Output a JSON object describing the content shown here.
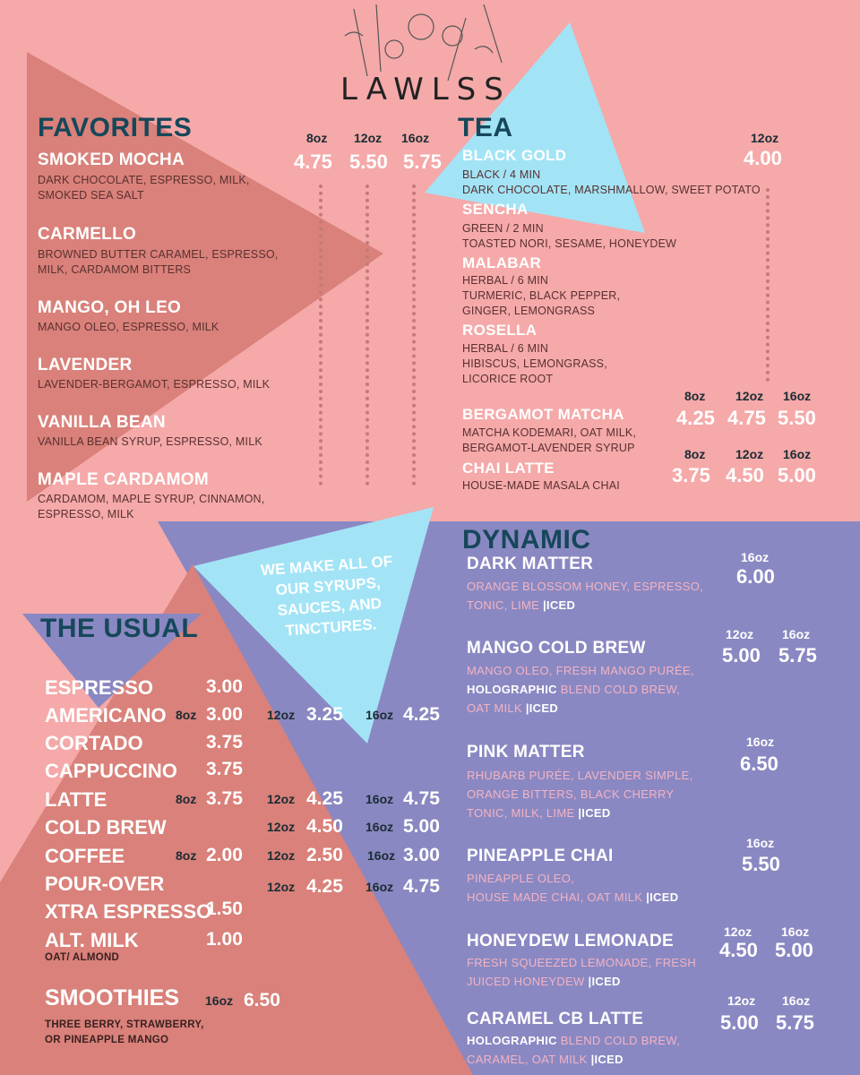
{
  "brand": "LAWLSS",
  "favorites": {
    "title": "FAVORITES",
    "sizes": [
      "8oz",
      "12oz",
      "16oz"
    ],
    "prices": [
      "4.75",
      "5.50",
      "5.75"
    ],
    "items": [
      {
        "name": "SMOKED MOCHA",
        "desc1": "DARK CHOCOLATE, ESPRESSO, MILK,",
        "desc2": "SMOKED SEA SALT"
      },
      {
        "name": "CARMELLO",
        "desc1": "BROWNED BUTTER CARAMEL, ESPRESSO,",
        "desc2": "MILK, CARDAMOM BITTERS"
      },
      {
        "name": "MANGO, OH LEO",
        "desc1": "MANGO OLEO, ESPRESSO, MILK",
        "desc2": ""
      },
      {
        "name": "LAVENDER",
        "desc1": "LAVENDER-BERGAMOT, ESPRESSO, MILK",
        "desc2": ""
      },
      {
        "name": "VANILLA BEAN",
        "desc1": "VANILLA BEAN SYRUP, ESPRESSO, MILK",
        "desc2": ""
      },
      {
        "name": "MAPLE CARDAMOM",
        "desc1": "CARDAMOM, MAPLE SYRUP, CINNAMON,",
        "desc2": "ESPRESSO, MILK"
      }
    ]
  },
  "tea": {
    "title": "TEA",
    "size": "12oz",
    "price": "4.00",
    "items": [
      {
        "name": "BLACK GOLD",
        "l1": "BLACK / 4 MIN",
        "l2": "DARK CHOCOLATE, MARSHMALLOW, SWEET POTATO",
        "l3": ""
      },
      {
        "name": "SENCHA",
        "l1": "GREEN / 2 MIN",
        "l2": "TOASTED NORI, SESAME, HONEYDEW",
        "l3": ""
      },
      {
        "name": "MALABAR",
        "l1": "HERBAL / 6 MIN",
        "l2": "TURMERIC, BLACK PEPPER,",
        "l3": "GINGER, LEMONGRASS"
      },
      {
        "name": "ROSELLA",
        "l1": "HERBAL / 6 MIN",
        "l2": "HIBISCUS, LEMONGRASS,",
        "l3": "LICORICE ROOT"
      }
    ],
    "matcha": {
      "name": "BERGAMOT MATCHA",
      "l1": "MATCHA KODEMARI, OAT MILK,",
      "l2": "BERGAMOT-LAVENDER SYRUP",
      "sizes": [
        "8oz",
        "12oz",
        "16oz"
      ],
      "prices": [
        "4.25",
        "4.75",
        "5.50"
      ]
    },
    "chai": {
      "name": "CHAI LATTE",
      "l1": "HOUSE-MADE MASALA CHAI",
      "sizes": [
        "8oz",
        "12oz",
        "16oz"
      ],
      "prices": [
        "3.75",
        "4.50",
        "5.00"
      ]
    }
  },
  "banner": {
    "l1": "WE MAKE ALL OF",
    "l2": "OUR SYRUPS,",
    "l3": "SAUCES, AND",
    "l4": "TINCTURES."
  },
  "usual": {
    "title": "THE USUAL",
    "espresso": {
      "name": "ESPRESSO",
      "p": "3.00"
    },
    "americano": {
      "name": "AMERICANO",
      "s1": "8oz",
      "p1": "3.00",
      "s2": "12oz",
      "p2": "3.25",
      "s3": "16oz",
      "p3": "4.25"
    },
    "cortado": {
      "name": "CORTADO",
      "p": "3.75"
    },
    "cappuccino": {
      "name": "CAPPUCCINO",
      "p": "3.75"
    },
    "latte": {
      "name": "LATTE",
      "s1": "8oz",
      "p1": "3.75",
      "s2": "12oz",
      "p2": "4.25",
      "s3": "16oz",
      "p3": "4.75"
    },
    "coldbrew": {
      "name": "COLD BREW",
      "s2": "12oz",
      "p2": "4.50",
      "s3": "16oz",
      "p3": "5.00"
    },
    "coffee": {
      "name": "COFFEE",
      "s1": "8oz",
      "p1": "2.00",
      "s2": "12oz",
      "p2": "2.50",
      "s3": "16oz",
      "p3": "3.00"
    },
    "pourover": {
      "name": "POUR-OVER",
      "s2": "12oz",
      "p2": "4.25",
      "s3": "16oz",
      "p3": "4.75"
    },
    "xtra": {
      "name": "XTRA ESPRESSO",
      "p": "1.50"
    },
    "altmilk": {
      "name": "ALT. MILK",
      "p": "1.00",
      "sub": "OAT/ ALMOND"
    },
    "smoothies": {
      "name": "SMOOTHIES",
      "s": "16oz",
      "p": "6.50",
      "sub1": "THREE BERRY, STRAWBERRY,",
      "sub2": "OR PINEAPPLE MANGO"
    }
  },
  "dynamic": {
    "title": "DYNAMIC",
    "iced": "|ICED",
    "holo": "HOLOGRAPHIC",
    "items": [
      {
        "name": "DARK MATTER",
        "sizes": [
          "16oz"
        ],
        "prices": [
          "6.00"
        ],
        "l1": "ORANGE BLOSSOM HONEY, ESPRESSO,",
        "l2": "TONIC, LIME"
      },
      {
        "name": "MANGO COLD BREW",
        "sizes": [
          "12oz",
          "16oz"
        ],
        "prices": [
          "5.00",
          "5.75"
        ],
        "l1": "MANGO OLEO, FRESH MANGO PURÉE,",
        "l2": " BLEND COLD BREW,",
        "l3": "OAT MILK"
      },
      {
        "name": "PINK MATTER",
        "sizes": [
          "16oz"
        ],
        "prices": [
          "6.50"
        ],
        "l1": "RHUBARB PURÉE, LAVENDER SIMPLE,",
        "l2": "ORANGE BITTERS, BLACK CHERRY",
        "l3": "TONIC, MILK, LIME"
      },
      {
        "name": "PINEAPPLE CHAI",
        "sizes": [
          "16oz"
        ],
        "prices": [
          "5.50"
        ],
        "l1": "PINEAPPLE OLEO,",
        "l2": "HOUSE MADE CHAI, OAT MILK"
      },
      {
        "name": "HONEYDEW LEMONADE",
        "sizes": [
          "12oz",
          "16oz"
        ],
        "prices": [
          "4.50",
          "5.00"
        ],
        "l1": "FRESH SQUEEZED LEMONADE, FRESH",
        "l2": "JUICED HONEYDEW"
      },
      {
        "name": "CARAMEL CB LATTE",
        "sizes": [
          "12oz",
          "16oz"
        ],
        "prices": [
          "5.00",
          "5.75"
        ],
        "l1": " BLEND COLD BREW,",
        "l2": "CARAMEL, OAT MILK"
      }
    ]
  },
  "colors": {
    "pink": "#f5a9a9",
    "salmon": "#d9817a",
    "lavender": "#8a88c2",
    "sky": "#a2e4f6",
    "teal": "#16475a"
  }
}
